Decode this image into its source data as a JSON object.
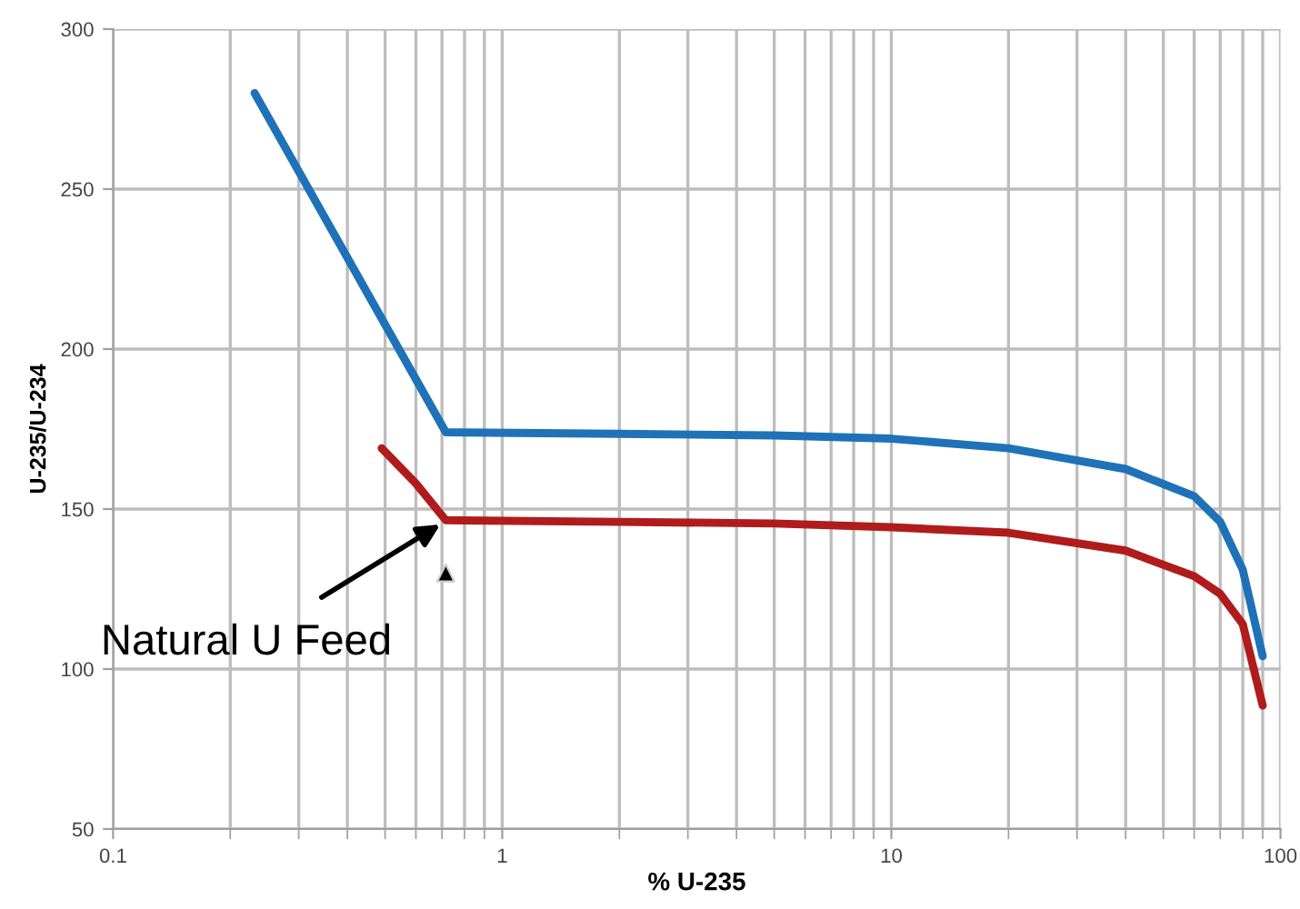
{
  "chart_data": {
    "type": "line",
    "xlabel": "% U-235",
    "ylabel": "U-235/U-234",
    "log": "x",
    "xlim": [
      0.1,
      100
    ],
    "xticks": [
      {
        "value": 0.1,
        "label": "0.1"
      },
      1,
      10,
      100
    ],
    "ylim": [
      50,
      300
    ],
    "yticks": [
      50,
      100,
      150,
      200,
      250,
      300
    ],
    "grid": true,
    "line_style": "solid",
    "series": [
      {
        "color": "#1f72b8",
        "marker": "none",
        "x": [
          0.231,
          0.716,
          2,
          5,
          10,
          20,
          40,
          60,
          70,
          80,
          90
        ],
        "values": [
          280,
          174,
          173.5,
          173,
          172,
          169,
          162.5,
          154,
          146,
          131,
          104
        ]
      },
      {
        "color": "#b01c1c",
        "marker": "none",
        "x": [
          0.49,
          0.6,
          0.716,
          2,
          5,
          10,
          20,
          40,
          60,
          70,
          80,
          90
        ],
        "values": [
          169,
          158,
          146.5,
          146,
          145.5,
          144.3,
          142.6,
          137,
          129,
          123.5,
          114,
          88.6
        ]
      },
      {
        "type": "scatter",
        "color": "#000000",
        "marker": "triangle",
        "x": [
          0.716
        ],
        "values": [
          130
        ]
      }
    ],
    "annotations": [
      {
        "text": "Natural U Feed",
        "x": 0.711,
        "y": 146
      }
    ]
  }
}
